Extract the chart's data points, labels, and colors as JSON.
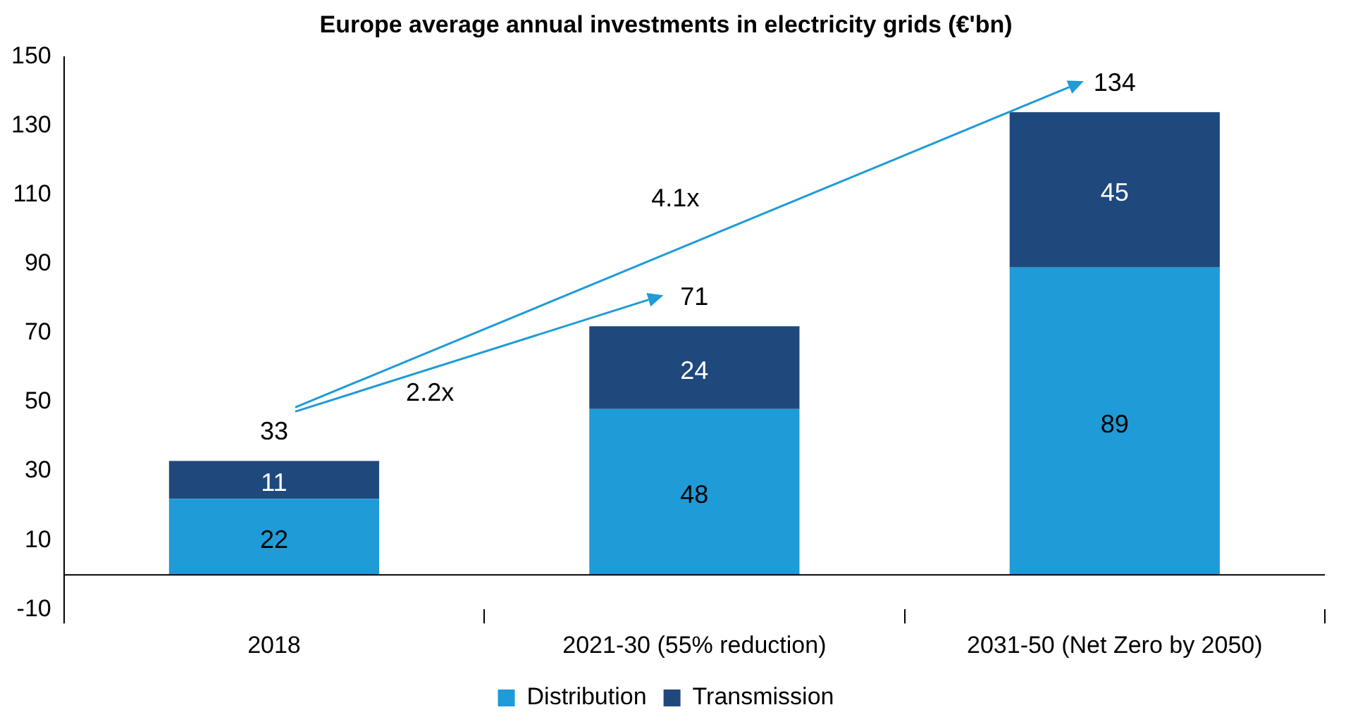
{
  "chart_data": {
    "type": "bar",
    "title": "Europe average annual investments in electricity grids (€'bn)",
    "categories": [
      "2018",
      "2021-30 (55% reduction)",
      "2031-50 (Net Zero by 2050)"
    ],
    "series": [
      {
        "name": "Distribution",
        "color": "#1f9bd7",
        "values": [
          22,
          48,
          89
        ]
      },
      {
        "name": "Transmission",
        "color": "#1f497d",
        "values": [
          11,
          24,
          45
        ]
      }
    ],
    "stacked": true,
    "data_labels": true,
    "totals": [
      "33",
      "71",
      "134"
    ],
    "ylim": [
      -10,
      150
    ],
    "yticks": [
      -10,
      10,
      30,
      50,
      70,
      90,
      110,
      130,
      150
    ],
    "grid": false,
    "legend": "bottom",
    "annotations": [
      "4.1x",
      "2.2x"
    ]
  }
}
